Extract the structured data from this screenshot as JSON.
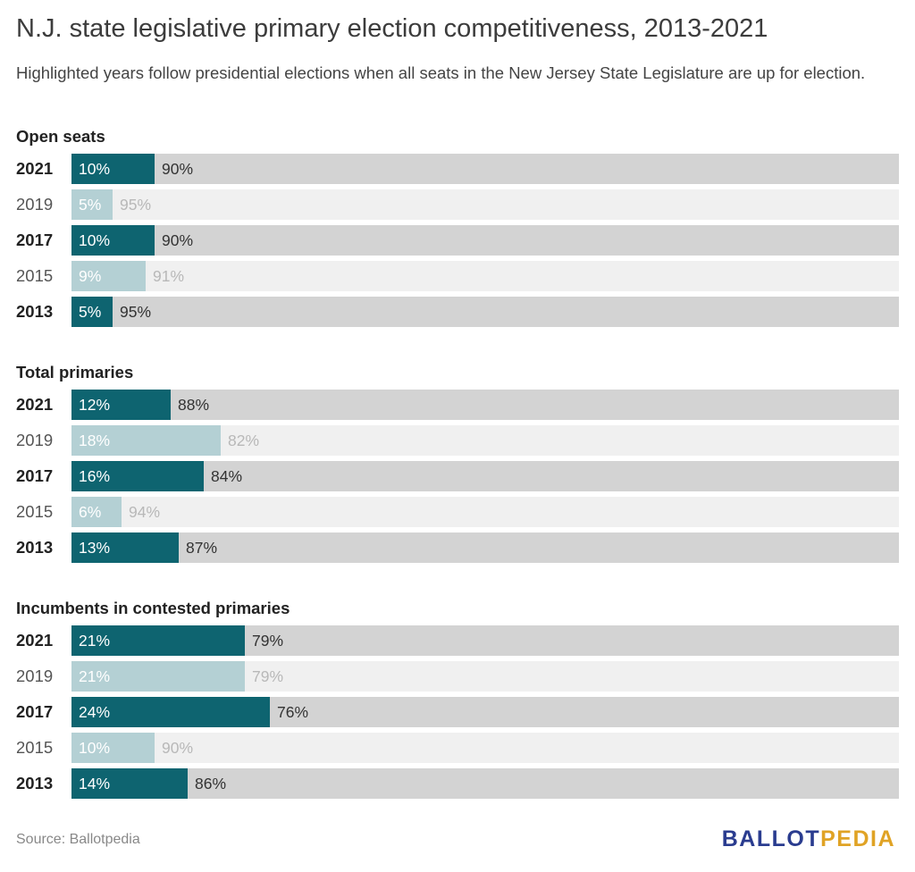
{
  "title": "N.J. state legislative primary election competitiveness, 2013-2021",
  "subtitle": "Highlighted years follow presidential elections when all seats in the New Jersey State Legislature are up for election.",
  "source": "Source: Ballotpedia",
  "brand": {
    "part1": "BALLOT",
    "part2": "PEDIA"
  },
  "colors": {
    "highlight_fill": "#0e6470",
    "highlight_track": "#d3d3d3",
    "dim_fill": "#b4d0d4",
    "dim_track": "#f0f0f0"
  },
  "chart_data": [
    {
      "type": "bar",
      "stacked": true,
      "orientation": "horizontal",
      "title": "Open seats",
      "categories": [
        "2021",
        "2019",
        "2017",
        "2015",
        "2013"
      ],
      "highlighted": [
        true,
        false,
        true,
        false,
        true
      ],
      "series": [
        {
          "values": [
            10,
            5,
            10,
            9,
            5
          ]
        },
        {
          "values": [
            90,
            95,
            90,
            91,
            95
          ]
        }
      ],
      "xlim": [
        0,
        100
      ]
    },
    {
      "type": "bar",
      "stacked": true,
      "orientation": "horizontal",
      "title": "Total primaries",
      "categories": [
        "2021",
        "2019",
        "2017",
        "2015",
        "2013"
      ],
      "highlighted": [
        true,
        false,
        true,
        false,
        true
      ],
      "series": [
        {
          "values": [
            12,
            18,
            16,
            6,
            13
          ]
        },
        {
          "values": [
            88,
            82,
            84,
            94,
            87
          ]
        }
      ],
      "xlim": [
        0,
        100
      ]
    },
    {
      "type": "bar",
      "stacked": true,
      "orientation": "horizontal",
      "title": "Incumbents in contested primaries",
      "categories": [
        "2021",
        "2019",
        "2017",
        "2015",
        "2013"
      ],
      "highlighted": [
        true,
        false,
        true,
        false,
        true
      ],
      "series": [
        {
          "values": [
            21,
            21,
            24,
            10,
            14
          ]
        },
        {
          "values": [
            79,
            79,
            76,
            90,
            86
          ]
        }
      ],
      "xlim": [
        0,
        100
      ]
    }
  ]
}
